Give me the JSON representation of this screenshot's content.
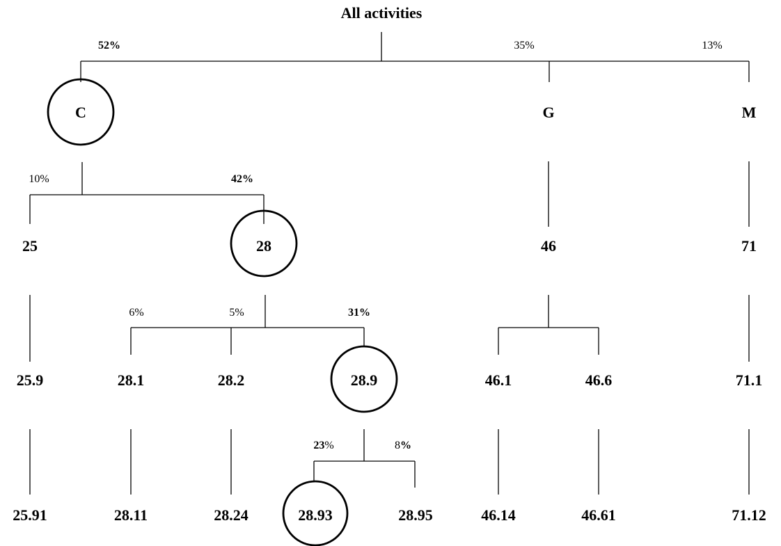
{
  "title": "All activities",
  "nodes": {
    "C": "C",
    "G": "G",
    "M": "M",
    "n25": "25",
    "n28": "28",
    "n46": "46",
    "n71": "71",
    "n25_9": "25.9",
    "n28_1": "28.1",
    "n28_2": "28.2",
    "n28_9": "28.9",
    "n46_1": "46.1",
    "n46_6": "46.6",
    "n71_1": "71.1",
    "n25_91": "25.91",
    "n28_11": "28.11",
    "n28_24": "28.24",
    "n28_93": "28.93",
    "n28_95": "28.95",
    "n46_14": "46.14",
    "n46_61": "46.61",
    "n71_12": "71.12"
  },
  "shares": {
    "C": {
      "num": "52",
      "sign": "%"
    },
    "G": {
      "num": "35",
      "sign": "%"
    },
    "M": {
      "num": "13",
      "sign": "%"
    },
    "n25": {
      "num": "10",
      "sign": "%"
    },
    "n28": {
      "num": "42",
      "sign": "%"
    },
    "n28_1": {
      "num": "6",
      "sign": "%"
    },
    "n28_2": {
      "num": "5",
      "sign": "%"
    },
    "n28_9": {
      "num": "31",
      "sign": "%"
    },
    "n28_93": {
      "num": "23",
      "sign": "%"
    },
    "n28_95": {
      "num": "8",
      "sign": "%"
    }
  }
}
